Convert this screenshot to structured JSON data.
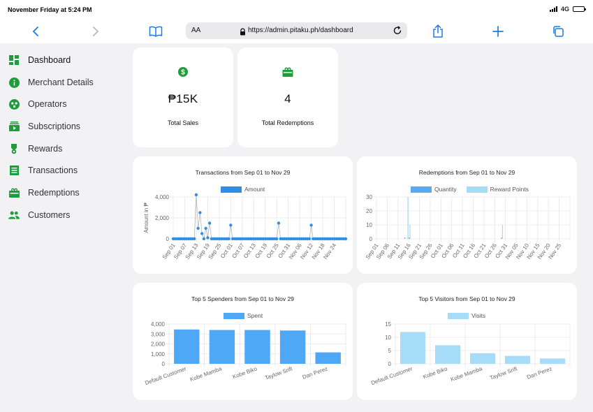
{
  "status": {
    "time": "November Friday at 5:24 PM",
    "network": "4G"
  },
  "browser": {
    "aa_label": "AA",
    "url": "https://admin.pitaku.ph/dashboard"
  },
  "sidebar": {
    "items": [
      {
        "label": "Dashboard",
        "icon": "dashboard-icon"
      },
      {
        "label": "Merchant Details",
        "icon": "info-icon"
      },
      {
        "label": "Operators",
        "icon": "operators-icon"
      },
      {
        "label": "Subscriptions",
        "icon": "subscriptions-icon"
      },
      {
        "label": "Rewards",
        "icon": "reward-icon"
      },
      {
        "label": "Transactions",
        "icon": "receipt-icon"
      },
      {
        "label": "Redemptions",
        "icon": "redeem-icon"
      },
      {
        "label": "Customers",
        "icon": "people-icon"
      }
    ]
  },
  "stats": {
    "total_sales": {
      "value": "₱15K",
      "label": "Total Sales"
    },
    "total_redemptions": {
      "value": "4",
      "label": "Total Redemptions"
    }
  },
  "colors": {
    "accent_green": "#1e9e3a",
    "blue": "#2f8fe6",
    "bar_blue": "#4fa8f5",
    "light_blue": "#a6dcf7",
    "grid": "#e6e6e6"
  },
  "chart_data": [
    {
      "id": "transactions",
      "type": "line",
      "title": "Transactions from Sep 01 to Nov 29",
      "legend": [
        "Amount"
      ],
      "ylabel": "Amount in ₱",
      "ylim": [
        0,
        4000
      ],
      "yticks": [
        "0",
        "2,000",
        "4,000"
      ],
      "xticks": [
        "Sep 01",
        "Sep 07",
        "Sep 13",
        "Sep 19",
        "Sep 25",
        "Oct 01",
        "Oct 07",
        "Oct 13",
        "Oct 19",
        "Oct 25",
        "Oct 31",
        "Nov 06",
        "Nov 12",
        "Nov 18",
        "Nov 24"
      ],
      "points": [
        {
          "day": 12,
          "value": 4200
        },
        {
          "day": 13,
          "value": 1000
        },
        {
          "day": 14,
          "value": 2500
        },
        {
          "day": 15,
          "value": 500
        },
        {
          "day": 17,
          "value": 1000
        },
        {
          "day": 18,
          "value": 100
        },
        {
          "day": 19,
          "value": 1500
        },
        {
          "day": 30,
          "value": 1300
        },
        {
          "day": 55,
          "value": 1500
        },
        {
          "day": 72,
          "value": 1300
        }
      ],
      "days": 90
    },
    {
      "id": "redemptions",
      "type": "bar",
      "title": "Redemptions from Sep 01 to Nov 29",
      "legend": [
        "Quantity",
        "Reward Points"
      ],
      "ylim": [
        0,
        30
      ],
      "yticks": [
        "0",
        "10",
        "20",
        "30"
      ],
      "xticks": [
        "Sep 01",
        "Sep 06",
        "Sep 11",
        "Sep 16",
        "Sep 21",
        "Sep 26",
        "Oct 01",
        "Oct 06",
        "Oct 11",
        "Oct 16",
        "Oct 21",
        "Oct 26",
        "Oct 31",
        "Nov 05",
        "Nov 10",
        "Nov 15",
        "Nov 20",
        "Nov 25"
      ],
      "series": [
        {
          "name": "Quantity",
          "points": [
            {
              "day": 13,
              "value": 1
            },
            {
              "day": 15,
              "value": 1
            },
            {
              "day": 58,
              "value": 1
            }
          ]
        },
        {
          "name": "Reward Points",
          "points": [
            {
              "day": 14,
              "value": 30
            },
            {
              "day": 15,
              "value": 10
            },
            {
              "day": 58,
              "value": 10
            }
          ]
        }
      ],
      "days": 90
    },
    {
      "id": "spenders",
      "type": "bar",
      "title": "Top 5 Spenders from Sep 01 to Nov 29",
      "legend": [
        "Spent"
      ],
      "ylim": [
        0,
        4000
      ],
      "yticks": [
        "0",
        "1,000",
        "2,000",
        "3,000",
        "4,000"
      ],
      "categories": [
        "Default Customer",
        "Kobe Mamba",
        "Kobe Biko",
        "Taylow Srift",
        "Dan Perez"
      ],
      "values": [
        3450,
        3400,
        3400,
        3350,
        1150
      ]
    },
    {
      "id": "visitors",
      "type": "bar",
      "title": "Top 5 Visitors from Sep 01 to Nov 29",
      "legend": [
        "Visits"
      ],
      "ylim": [
        0,
        15
      ],
      "yticks": [
        "0",
        "5",
        "10",
        "15"
      ],
      "categories": [
        "Default Customer",
        "Kobe Biko",
        "Kobe Mamba",
        "Taylow Srift",
        "Dan Perez"
      ],
      "values": [
        12,
        7,
        4,
        3,
        2
      ]
    }
  ]
}
